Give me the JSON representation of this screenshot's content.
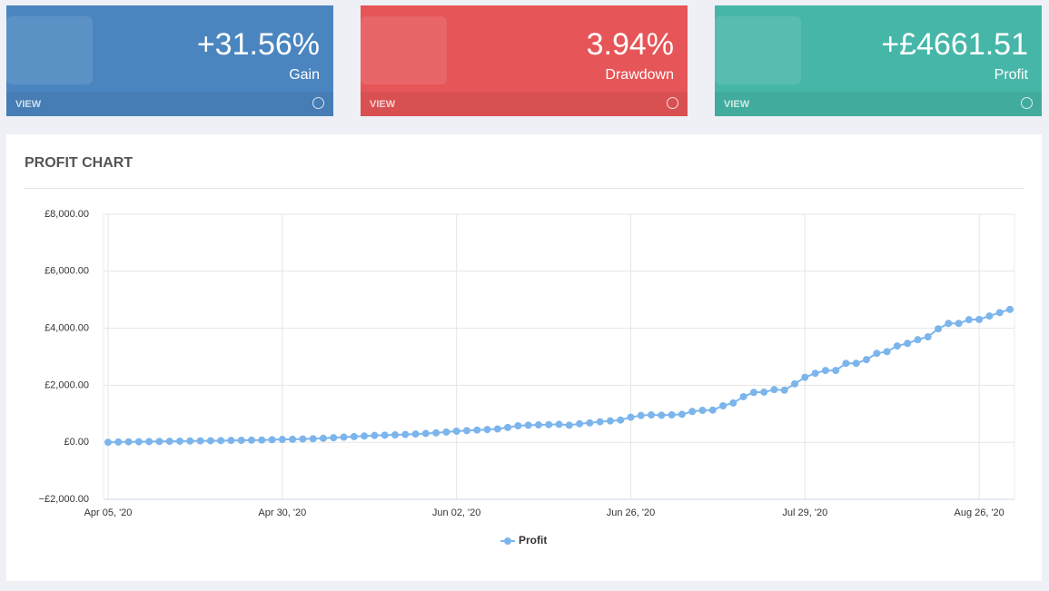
{
  "cards": [
    {
      "value": "+31.56%",
      "label": "Gain",
      "link": "VIEW",
      "color": "#4a85c0"
    },
    {
      "value": "3.94%",
      "label": "Drawdown",
      "link": "VIEW",
      "color": "#e65557"
    },
    {
      "value": "+£4661.51",
      "label": "Profit",
      "link": "VIEW",
      "color": "#46b6a8"
    }
  ],
  "panel_title": "PROFIT CHART",
  "chart_data": {
    "type": "line",
    "categories": [
      "Apr 05, '20",
      null,
      null,
      null,
      null,
      null,
      null,
      null,
      null,
      null,
      null,
      null,
      null,
      null,
      null,
      null,
      null,
      "Apr 30, '20",
      null,
      null,
      null,
      null,
      null,
      null,
      null,
      null,
      null,
      null,
      null,
      null,
      null,
      null,
      null,
      null,
      "Jun 02, '20",
      null,
      null,
      null,
      null,
      null,
      null,
      null,
      null,
      null,
      null,
      null,
      null,
      null,
      null,
      null,
      null,
      "Jun 26, '20",
      null,
      null,
      null,
      null,
      null,
      null,
      null,
      null,
      null,
      null,
      null,
      null,
      null,
      null,
      null,
      null,
      "Jul 29, '20",
      null,
      null,
      null,
      null,
      null,
      null,
      null,
      null,
      null,
      null,
      null,
      null,
      null,
      null,
      null,
      null,
      "Aug 26, '20",
      null,
      null,
      null
    ],
    "series": [
      {
        "name": "Profit",
        "color": "#7cb5ec",
        "values": [
          0,
          10,
          15,
          20,
          25,
          30,
          35,
          40,
          45,
          50,
          55,
          60,
          65,
          70,
          75,
          80,
          90,
          100,
          105,
          115,
          125,
          140,
          160,
          180,
          200,
          220,
          240,
          250,
          260,
          275,
          290,
          310,
          330,
          360,
          390,
          410,
          430,
          450,
          470,
          520,
          580,
          600,
          610,
          620,
          630,
          600,
          650,
          680,
          720,
          750,
          780,
          880,
          940,
          960,
          950,
          960,
          980,
          1080,
          1120,
          1130,
          1280,
          1380,
          1600,
          1750,
          1760,
          1850,
          1830,
          2050,
          2280,
          2420,
          2520,
          2520,
          2770,
          2770,
          2900,
          3120,
          3180,
          3380,
          3470,
          3600,
          3700,
          3980,
          4170,
          4170,
          4300,
          4310,
          4430,
          4550,
          4661.51
        ]
      }
    ],
    "ylim": [
      -2000,
      8000
    ],
    "yticks": [
      {
        "value": -2000,
        "label": "−£2,000.00"
      },
      {
        "value": 0,
        "label": "£0.00"
      },
      {
        "value": 2000,
        "label": "£2,000.00"
      },
      {
        "value": 4000,
        "label": "£4,000.00"
      },
      {
        "value": 6000,
        "label": "£6,000.00"
      },
      {
        "value": 8000,
        "label": "£8,000.00"
      }
    ],
    "grid": true,
    "legend": "bottom"
  }
}
